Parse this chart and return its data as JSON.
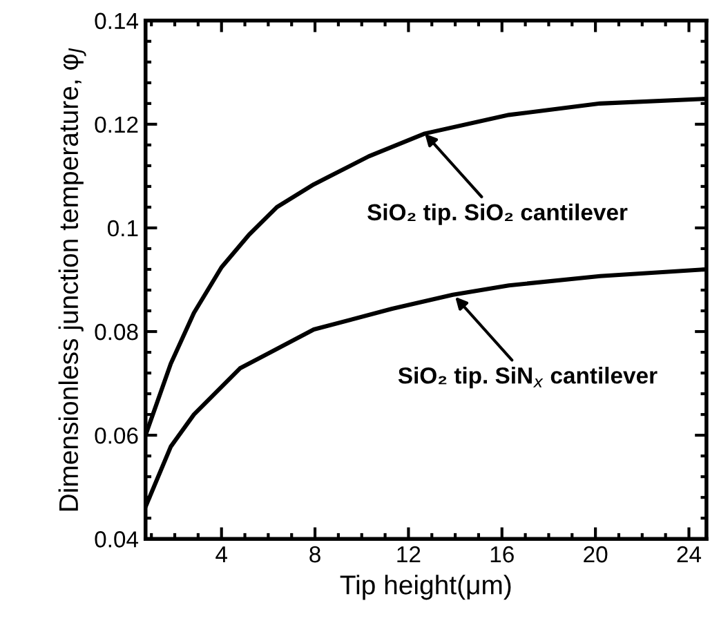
{
  "chart_data": {
    "type": "line",
    "xlabel": "Tip height(μm)",
    "ylabel": "Dimensionless junction temperature, φ$_{J}$",
    "xlim": [
      0.75,
      24.75
    ],
    "ylim": [
      0.04,
      0.14
    ],
    "xticks": [
      4,
      8,
      12,
      16,
      20,
      24
    ],
    "yticks": [
      0.04,
      0.06,
      0.08,
      0.1,
      0.12,
      0.14
    ],
    "grid": false,
    "marker": "none",
    "line_style": "solid",
    "series": [
      {
        "color": "#000000",
        "x": [
          0.75,
          1.83,
          2.82,
          4,
          5.18,
          6.37,
          7.95,
          10.3,
          12.7,
          16.3,
          20.2,
          24.75
        ],
        "values": [
          0.06,
          0.0738,
          0.0836,
          0.0924,
          0.0987,
          0.104,
          0.1084,
          0.1138,
          0.1182,
          0.1218,
          0.124,
          0.1249
        ]
      },
      {
        "color": "#000000",
        "x": [
          0.75,
          1.83,
          2.82,
          4.79,
          7.95,
          11.3,
          13.9,
          16.3,
          20.2,
          24.75
        ],
        "values": [
          0.0462,
          0.0578,
          0.064,
          0.0729,
          0.0804,
          0.0844,
          0.0871,
          0.0889,
          0.0907,
          0.092
        ]
      }
    ],
    "annotations": [
      {
        "text": "SiO₂ tip. SiO₂ cantilever",
        "x": 12.7,
        "y": 0.1182
      },
      {
        "text": "SiO₂ tip. SiN$_{x}$ cantilever",
        "x": 14.0,
        "y": 0.0867
      }
    ]
  }
}
